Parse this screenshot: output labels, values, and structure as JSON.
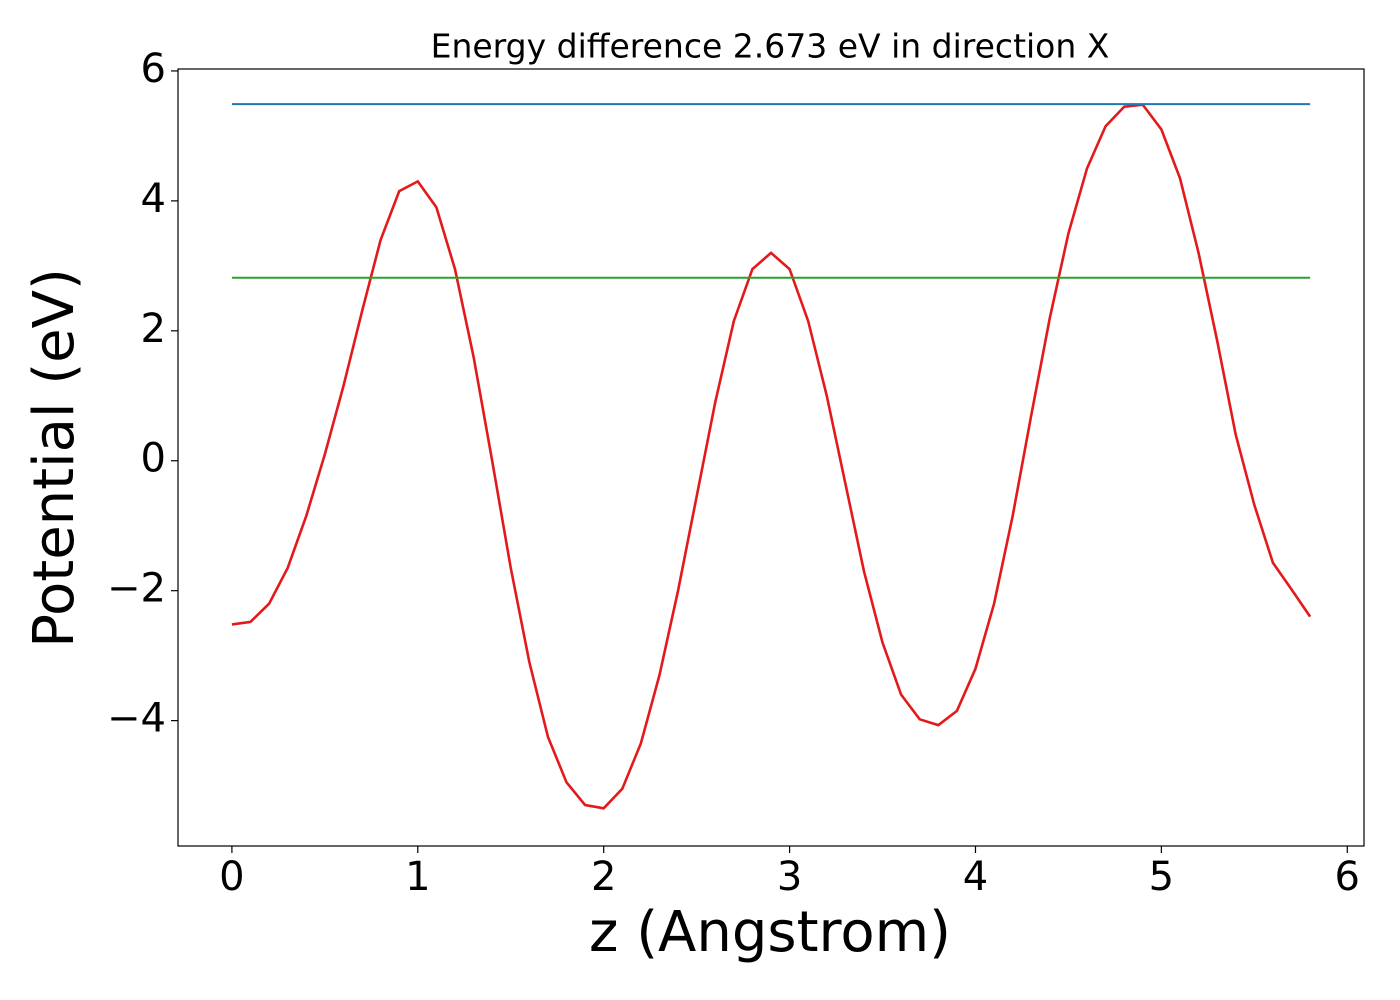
{
  "chart_data": {
    "type": "line",
    "title": "Energy difference 2.673 eV in direction X",
    "xlabel": "z (Angstrom)",
    "ylabel": "Potential (eV)",
    "xlim": [
      -0.29,
      6.09
    ],
    "ylim": [
      -5.93,
      6.03
    ],
    "xticks": [
      0,
      1,
      2,
      3,
      4,
      5,
      6
    ],
    "yticks": [
      {
        "value": -4,
        "label": "−4"
      },
      {
        "value": -2,
        "label": "−2"
      },
      0,
      2,
      4,
      6
    ],
    "grid": false,
    "series": [
      {
        "color": "#e31a1c",
        "x": [
          0.0,
          0.1,
          0.2,
          0.3,
          0.4,
          0.5,
          0.6,
          0.7,
          0.8,
          0.9,
          1.0,
          1.1,
          1.2,
          1.3,
          1.4,
          1.5,
          1.6,
          1.7,
          1.8,
          1.9,
          2.0,
          2.1,
          2.2,
          2.3,
          2.4,
          2.5,
          2.6,
          2.7,
          2.8,
          2.9,
          3.0,
          3.1,
          3.2,
          3.3,
          3.4,
          3.5,
          3.6,
          3.7,
          3.8,
          3.9,
          4.0,
          4.1,
          4.2,
          4.3,
          4.4,
          4.5,
          4.6,
          4.7,
          4.8,
          4.9,
          5.0,
          5.1,
          5.2,
          5.3,
          5.4,
          5.5,
          5.6,
          5.7,
          5.8
        ],
        "values": [
          -2.52,
          -2.48,
          -2.2,
          -1.65,
          -0.85,
          0.1,
          1.15,
          2.3,
          3.4,
          4.15,
          4.3,
          3.9,
          2.95,
          1.6,
          0.0,
          -1.65,
          -3.1,
          -4.25,
          -4.95,
          -5.3,
          -5.35,
          -5.05,
          -4.35,
          -3.3,
          -2.0,
          -0.55,
          0.9,
          2.15,
          2.95,
          3.2,
          2.95,
          2.15,
          1.0,
          -0.35,
          -1.7,
          -2.8,
          -3.6,
          -3.98,
          -4.07,
          -3.85,
          -3.2,
          -2.2,
          -0.85,
          0.7,
          2.2,
          3.5,
          4.5,
          5.15,
          5.45,
          5.48,
          5.1,
          4.35,
          3.2,
          1.85,
          0.4,
          -0.68,
          -1.57,
          -1.98,
          -2.4
        ]
      },
      {
        "color": "#1f77b4",
        "x": [
          0.0,
          5.8
        ],
        "values": [
          5.49,
          5.49
        ]
      },
      {
        "color": "#2ca02c",
        "x": [
          0.0,
          5.8
        ],
        "values": [
          2.817,
          2.817
        ]
      }
    ]
  }
}
